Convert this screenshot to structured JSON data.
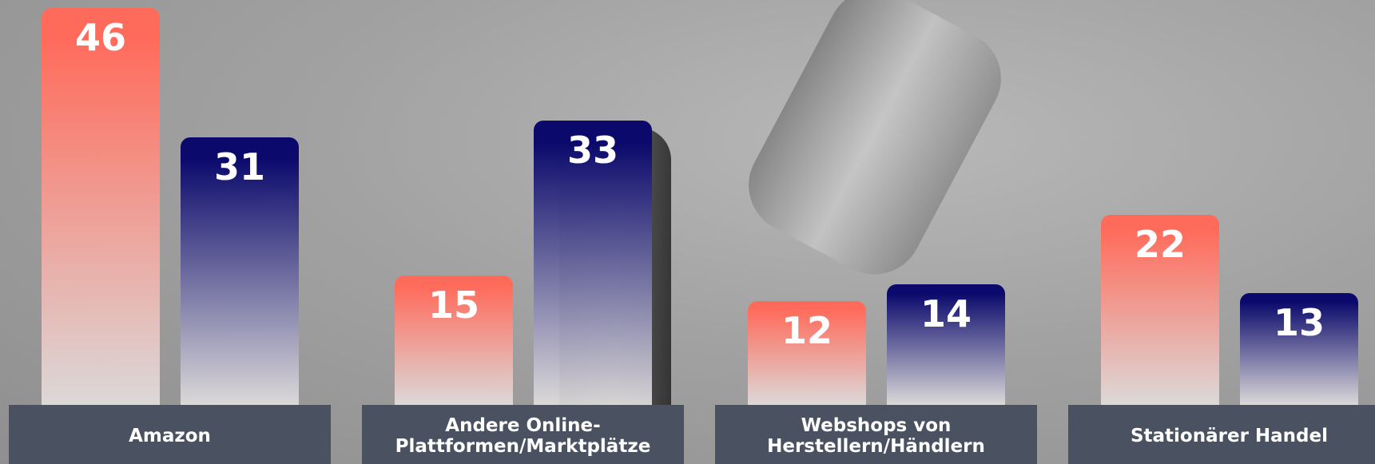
{
  "chart_data": {
    "type": "bar",
    "categories": [
      "Amazon",
      "Andere Online-Plattformen/Marktplätze",
      "Webshops von Herstellern/Händlern",
      "Stationärer Handel"
    ],
    "series": [
      {
        "color": "#ff6b5b",
        "values": [
          46,
          15,
          12,
          22
        ]
      },
      {
        "color": "#0b0a6c",
        "values": [
          31,
          33,
          14,
          13
        ]
      }
    ]
  }
}
